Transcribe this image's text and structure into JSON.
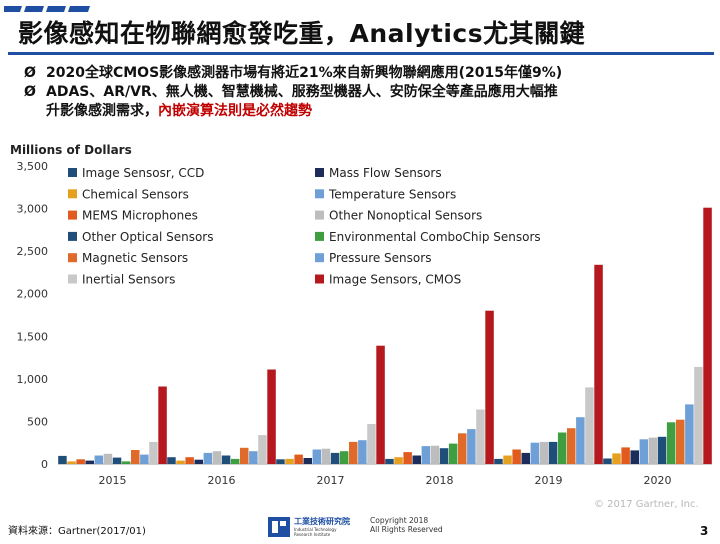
{
  "title": "影像感知在物聯網愈發吃重，Analytics尤其關鍵",
  "bullets": [
    {
      "text": "2020全球CMOS影像感測器市場有將近21%來自新興物聯網應用(2015年僅9%)"
    },
    {
      "text_line1": "ADAS、AR/VR、無人機、智慧機械、服務型機器人、安防保全等產品應用大幅推",
      "text_line2_normal": "升影像感測需求，",
      "text_line2_highlight": "內嵌演算法則是必然趨勢"
    }
  ],
  "bullet_marker": "Ø",
  "footer": {
    "source": "資料來源：Gartner(2017/01)",
    "org_name": "工業技術研究院",
    "org_sub": "Industrial Technology Research Institute",
    "copyright_line1": "Copyright 2018",
    "copyright_line2": "All Rights Reserved",
    "page_number": "3"
  },
  "colors": {
    "title_line": "#1f4fa3",
    "highlight": "#c00000"
  },
  "chart_data": {
    "type": "bar",
    "title": "Millions of Dollars",
    "watermark": "© 2017 Gartner, Inc.",
    "categories": [
      "2015",
      "2016",
      "2017",
      "2018",
      "2019",
      "2020"
    ],
    "ylim": [
      0,
      3500
    ],
    "yticks": [
      0,
      500,
      1000,
      1500,
      2000,
      2500,
      3000,
      3500
    ],
    "ytick_labels": [
      "0",
      "500",
      "1,000",
      "1,500",
      "2,000",
      "2,500",
      "3,000",
      "3,500"
    ],
    "legend_position": "top-left",
    "series": [
      {
        "name": "Image Sensosr, CCD",
        "color": "#1f4e79",
        "values": [
          95,
          80,
          55,
          60,
          60,
          65
        ]
      },
      {
        "name": "Chemical Sensors",
        "color": "#e6a020",
        "values": [
          30,
          40,
          60,
          80,
          100,
          125
        ]
      },
      {
        "name": "MEMS Microphones",
        "color": "#e15b1e",
        "values": [
          55,
          80,
          110,
          140,
          170,
          195
        ]
      },
      {
        "name": "Other Optical Sensors",
        "color": "#1f4e79",
        "values": [
          75,
          100,
          130,
          185,
          260,
          320
        ]
      },
      {
        "name": "Magnetic Sensors",
        "color": "#e06a2a",
        "values": [
          165,
          190,
          260,
          360,
          420,
          520
        ]
      },
      {
        "name": "Inertial Sensors",
        "color": "#c8c8c8",
        "values": [
          260,
          340,
          470,
          640,
          900,
          1140
        ]
      },
      {
        "name": "Mass Flow Sensors",
        "color": "#1c2d5c",
        "values": [
          40,
          50,
          70,
          100,
          130,
          160
        ]
      },
      {
        "name": "Temperature Sensors",
        "color": "#6e9fd6",
        "values": [
          100,
          130,
          170,
          210,
          250,
          290
        ]
      },
      {
        "name": "Other Nonoptical Sensors",
        "color": "#bdbdbd",
        "values": [
          120,
          150,
          180,
          215,
          260,
          310
        ]
      },
      {
        "name": "Environmental ComboChip Sensors",
        "color": "#3f9e3f",
        "values": [
          30,
          60,
          150,
          240,
          370,
          490
        ]
      },
      {
        "name": "Pressure Sensors",
        "color": "#6e9fd6",
        "values": [
          110,
          150,
          280,
          410,
          550,
          700
        ]
      },
      {
        "name": "Image Sensors, CMOS",
        "color": "#b5191d",
        "values": [
          910,
          1110,
          1390,
          1800,
          2340,
          3010
        ]
      }
    ],
    "bar_order": [
      0,
      1,
      2,
      6,
      7,
      8,
      3,
      9,
      4,
      10,
      5,
      11
    ]
  }
}
